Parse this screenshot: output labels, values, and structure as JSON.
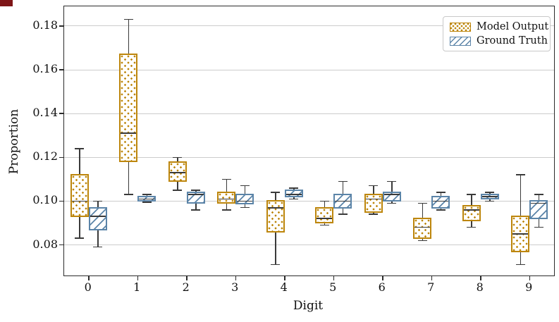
{
  "colors": {
    "model_output": "#bd860c",
    "ground_truth": "#5b84a8",
    "whisker": "#3a3a3a",
    "spine": "#2b2b2b",
    "gridline": "#cccccc",
    "corner_artifact": "#7e1517"
  },
  "legend": {
    "items": [
      {
        "label": "Model Output",
        "swatch": "dotted-orange-patch-icon"
      },
      {
        "label": "Ground Truth",
        "swatch": "diagonal-blue-patch-icon"
      }
    ]
  },
  "chart_data": {
    "type": "boxplot",
    "title": "",
    "xlabel": "Digit",
    "ylabel": "Proportion",
    "categories": [
      "0",
      "1",
      "2",
      "3",
      "4",
      "5",
      "6",
      "7",
      "8",
      "9"
    ],
    "yticks": [
      0.08,
      0.1,
      0.12,
      0.14,
      0.16,
      0.18
    ],
    "ylim": [
      0.066,
      0.189
    ],
    "grid": "horizontal",
    "legend_position": "upper right",
    "series": [
      {
        "name": "Model Output",
        "hatch": "dots",
        "color": "#bd860c",
        "boxes": [
          {
            "whislo": 0.083,
            "q1": 0.093,
            "med": 0.1,
            "q3": 0.112,
            "whishi": 0.124
          },
          {
            "whislo": 0.103,
            "q1": 0.118,
            "med": 0.131,
            "q3": 0.167,
            "whishi": 0.183
          },
          {
            "whislo": 0.105,
            "q1": 0.109,
            "med": 0.113,
            "q3": 0.118,
            "whishi": 0.12
          },
          {
            "whislo": 0.096,
            "q1": 0.099,
            "med": 0.101,
            "q3": 0.104,
            "whishi": 0.11
          },
          {
            "whislo": 0.071,
            "q1": 0.086,
            "med": 0.097,
            "q3": 0.1,
            "whishi": 0.104
          },
          {
            "whislo": 0.089,
            "q1": 0.09,
            "med": 0.092,
            "q3": 0.097,
            "whishi": 0.1
          },
          {
            "whislo": 0.094,
            "q1": 0.095,
            "med": 0.101,
            "q3": 0.103,
            "whishi": 0.107
          },
          {
            "whislo": 0.082,
            "q1": 0.083,
            "med": 0.088,
            "q3": 0.092,
            "whishi": 0.099
          },
          {
            "whislo": 0.088,
            "q1": 0.091,
            "med": 0.096,
            "q3": 0.098,
            "whishi": 0.103
          },
          {
            "whislo": 0.071,
            "q1": 0.077,
            "med": 0.085,
            "q3": 0.093,
            "whishi": 0.112
          }
        ]
      },
      {
        "name": "Ground Truth",
        "hatch": "diagonal",
        "color": "#5b84a8",
        "boxes": [
          {
            "whislo": 0.079,
            "q1": 0.087,
            "med": 0.093,
            "q3": 0.097,
            "whishi": 0.1
          },
          {
            "whislo": 0.0995,
            "q1": 0.1,
            "med": 0.101,
            "q3": 0.102,
            "whishi": 0.103
          },
          {
            "whislo": 0.096,
            "q1": 0.099,
            "med": 0.103,
            "q3": 0.104,
            "whishi": 0.105
          },
          {
            "whislo": 0.097,
            "q1": 0.099,
            "med": 0.1,
            "q3": 0.103,
            "whishi": 0.107
          },
          {
            "whislo": 0.101,
            "q1": 0.102,
            "med": 0.103,
            "q3": 0.105,
            "whishi": 0.106
          },
          {
            "whislo": 0.094,
            "q1": 0.097,
            "med": 0.1,
            "q3": 0.103,
            "whishi": 0.109
          },
          {
            "whislo": 0.099,
            "q1": 0.1,
            "med": 0.103,
            "q3": 0.104,
            "whishi": 0.109
          },
          {
            "whislo": 0.096,
            "q1": 0.097,
            "med": 0.1,
            "q3": 0.102,
            "whishi": 0.104
          },
          {
            "whislo": 0.1,
            "q1": 0.101,
            "med": 0.102,
            "q3": 0.103,
            "whishi": 0.104
          },
          {
            "whislo": 0.088,
            "q1": 0.092,
            "med": 0.099,
            "q3": 0.1,
            "whishi": 0.103
          }
        ]
      }
    ]
  }
}
